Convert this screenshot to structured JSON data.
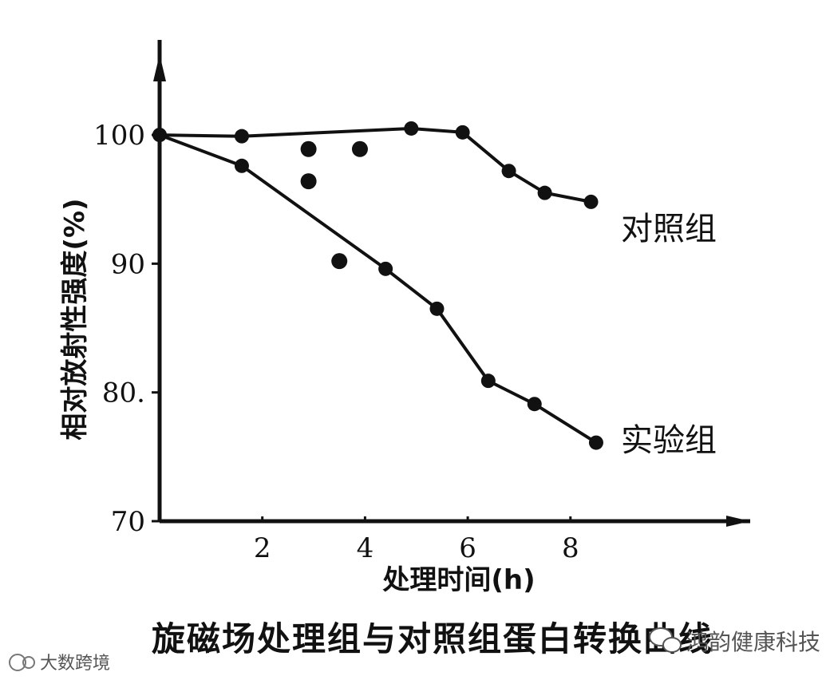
{
  "chart_data": {
    "type": "line",
    "title": "旋磁场处理组与对照组蛋白转换曲线",
    "xlabel": "处理时间(h)",
    "ylabel": "相对放射性强度(%)",
    "xlim": [
      0,
      11.5
    ],
    "ylim": [
      70,
      108
    ],
    "x_ticks": [
      2,
      4,
      6,
      8
    ],
    "y_ticks": [
      70,
      80,
      90,
      100
    ],
    "y_tick_labels": [
      "70",
      "80.",
      "90",
      "100"
    ],
    "grid": false,
    "legend": "inline-end-of-lines",
    "series": [
      {
        "name": "对照组",
        "color": "#111111",
        "points": [
          [
            0,
            100
          ],
          [
            1.6,
            99.9
          ],
          [
            4.9,
            100.5
          ],
          [
            5.9,
            100.2
          ],
          [
            6.8,
            97.2
          ],
          [
            7.5,
            95.5
          ],
          [
            8.4,
            94.8
          ]
        ]
      },
      {
        "name": "实验组",
        "color": "#111111",
        "points": [
          [
            0,
            100
          ],
          [
            1.6,
            97.6
          ],
          [
            4.4,
            89.6
          ],
          [
            5.4,
            86.5
          ],
          [
            6.4,
            80.9
          ],
          [
            7.3,
            79.1
          ],
          [
            8.5,
            76.1
          ]
        ]
      }
    ],
    "scatter_points": [
      [
        2.9,
        98.9
      ],
      [
        3.9,
        98.9
      ],
      [
        2.9,
        96.4
      ],
      [
        3.5,
        90.2
      ]
    ]
  },
  "watermarks": {
    "left": "大数跨境",
    "right": "鸿韵健康科技"
  }
}
